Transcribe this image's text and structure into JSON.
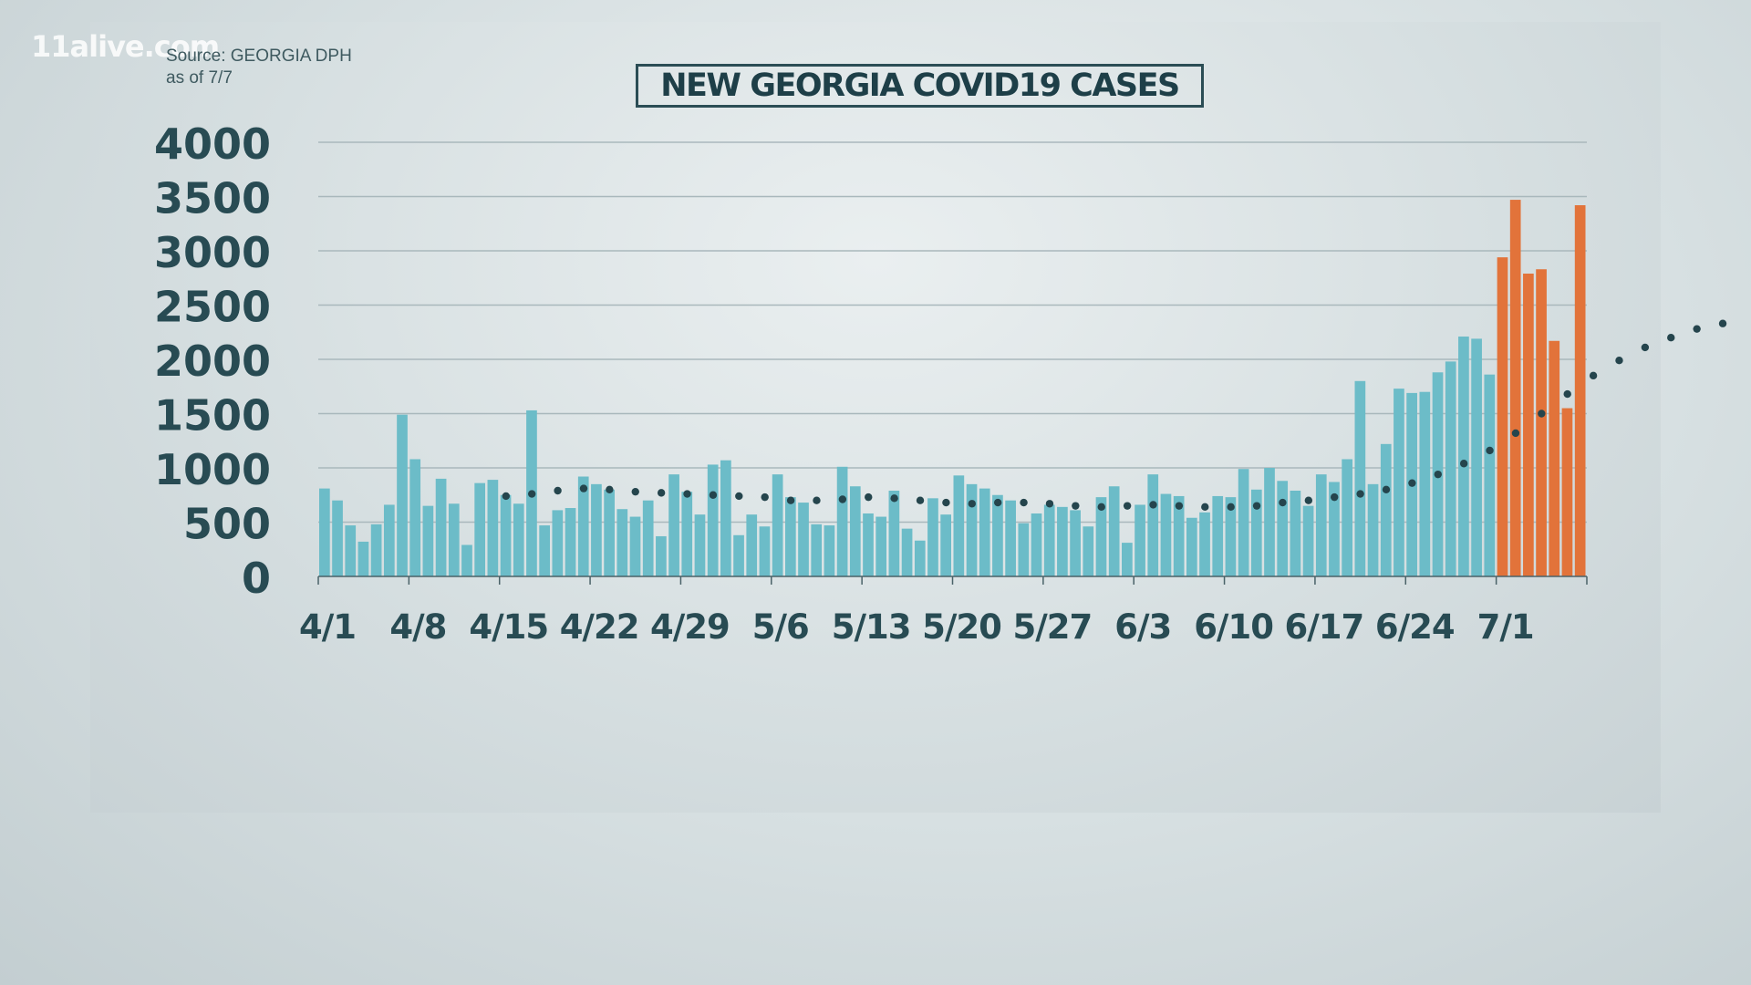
{
  "watermark": "11alive.com",
  "source_lines": [
    "Source: GEORGIA DPH",
    "as of 7/7"
  ],
  "colors": {
    "bar_primary": "#6cbcc8",
    "bar_recent": "#e2733a",
    "trend_dots": "#25454d",
    "axis_text": "#284b53",
    "title_border": "#2b4d55"
  },
  "chart_data": {
    "type": "bar",
    "title": "NEW GEORGIA COVID19 CASES",
    "ylim": [
      0,
      4000
    ],
    "y_ticks": [
      "0",
      "500",
      "1000",
      "1500",
      "2000",
      "2500",
      "3000",
      "3500",
      "4000"
    ],
    "x_tick_labels": [
      "4/1",
      "4/8",
      "4/15",
      "4/22",
      "4/29",
      "5/6",
      "5/13",
      "5/20",
      "5/27",
      "6/3",
      "6/10",
      "6/17",
      "6/24",
      "7/1"
    ],
    "grid": true,
    "values": [
      810,
      700,
      470,
      320,
      480,
      660,
      1490,
      1080,
      650,
      900,
      670,
      290,
      860,
      890,
      750,
      670,
      1530,
      470,
      610,
      630,
      920,
      850,
      800,
      620,
      550,
      700,
      370,
      940,
      780,
      570,
      1030,
      1070,
      380,
      570,
      460,
      940,
      730,
      680,
      480,
      470,
      1010,
      830,
      580,
      550,
      790,
      440,
      330,
      720,
      570,
      930,
      850,
      810,
      750,
      700,
      490,
      580,
      660,
      640,
      610,
      460,
      730,
      830,
      310,
      660,
      940,
      760,
      740,
      540,
      590,
      740,
      730,
      990,
      800,
      1000,
      880,
      790,
      650,
      940,
      870,
      1080,
      1800,
      850,
      1220,
      1730,
      1690,
      1700,
      1880,
      1980,
      2210,
      2190,
      1860,
      2940,
      3470,
      2790,
      2830,
      2170,
      1550,
      3420
    ],
    "highlight_from_index": 91,
    "trend": [
      [
        14,
        740
      ],
      [
        16,
        760
      ],
      [
        18,
        790
      ],
      [
        20,
        810
      ],
      [
        22,
        800
      ],
      [
        24,
        780
      ],
      [
        26,
        770
      ],
      [
        28,
        760
      ],
      [
        30,
        750
      ],
      [
        32,
        740
      ],
      [
        34,
        730
      ],
      [
        36,
        700
      ],
      [
        38,
        700
      ],
      [
        40,
        710
      ],
      [
        42,
        730
      ],
      [
        44,
        720
      ],
      [
        46,
        700
      ],
      [
        48,
        680
      ],
      [
        50,
        670
      ],
      [
        52,
        680
      ],
      [
        54,
        680
      ],
      [
        56,
        670
      ],
      [
        58,
        650
      ],
      [
        60,
        640
      ],
      [
        62,
        650
      ],
      [
        64,
        660
      ],
      [
        66,
        650
      ],
      [
        68,
        640
      ],
      [
        70,
        640
      ],
      [
        72,
        650
      ],
      [
        74,
        680
      ],
      [
        76,
        700
      ],
      [
        78,
        730
      ],
      [
        80,
        760
      ],
      [
        82,
        800
      ],
      [
        84,
        860
      ],
      [
        86,
        940
      ],
      [
        88,
        1040
      ],
      [
        90,
        1160
      ],
      [
        92,
        1320
      ],
      [
        94,
        1500
      ],
      [
        96,
        1680
      ],
      [
        98,
        1850
      ],
      [
        100,
        1990
      ],
      [
        102,
        2110
      ],
      [
        104,
        2200
      ],
      [
        106,
        2280
      ],
      [
        108,
        2330
      ]
    ]
  }
}
